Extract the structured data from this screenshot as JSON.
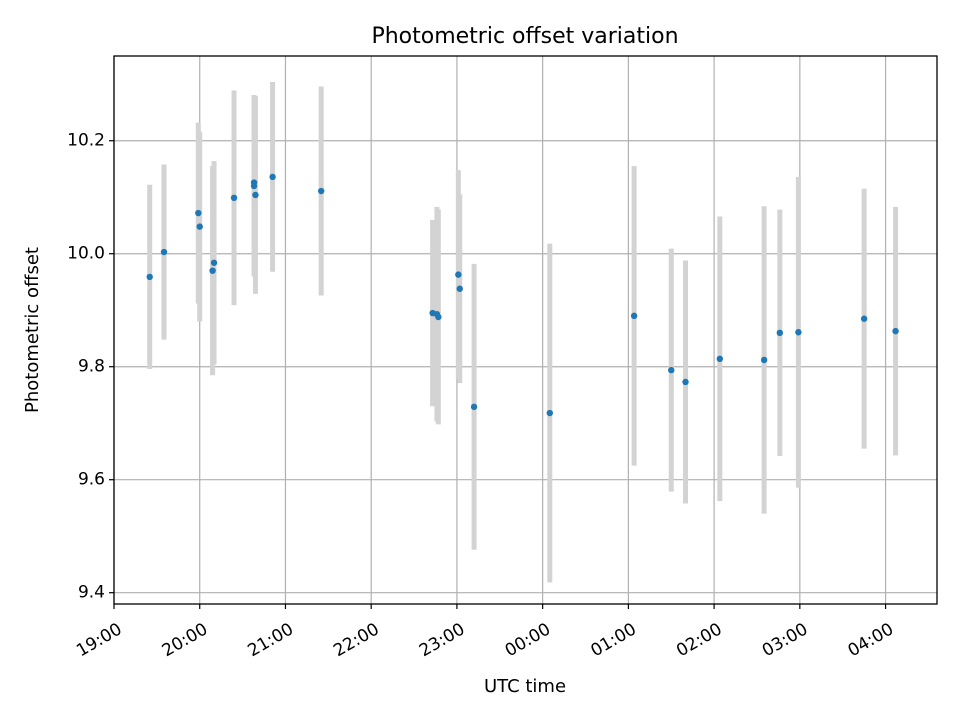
{
  "chart_data": {
    "type": "scatter",
    "title": "Photometric offset variation",
    "xlabel": "UTC time",
    "ylabel": "Photometric offset",
    "x_unit": "UTC time (HH:MM), spanning midnight",
    "x_ticks": [
      "19:00",
      "20:00",
      "21:00",
      "22:00",
      "23:00",
      "00:00",
      "01:00",
      "02:00",
      "03:00",
      "04:00"
    ],
    "y_ticks": [
      "9.4",
      "9.6",
      "9.8",
      "10.0",
      "10.2"
    ],
    "xlim": [
      "19:00",
      "04:36"
    ],
    "ylim": [
      9.38,
      10.35
    ],
    "grid": true,
    "point_color": "#1f77b4",
    "errorbar_color": "#d3d3d3",
    "points": [
      {
        "x": "19:25",
        "y": 9.959,
        "err": 0.163
      },
      {
        "x": "19:35",
        "y": 10.003,
        "err": 0.155
      },
      {
        "x": "19:59",
        "y": 10.072,
        "err": 0.16
      },
      {
        "x": "20:00",
        "y": 10.048,
        "err": 0.168
      },
      {
        "x": "20:09",
        "y": 9.97,
        "err": 0.185
      },
      {
        "x": "20:10",
        "y": 9.984,
        "err": 0.18
      },
      {
        "x": "20:24",
        "y": 10.099,
        "err": 0.19
      },
      {
        "x": "20:38",
        "y": 10.126,
        "err": 0.155
      },
      {
        "x": "20:38",
        "y": 10.12,
        "err": 0.16
      },
      {
        "x": "20:39",
        "y": 10.104,
        "err": 0.175
      },
      {
        "x": "20:51",
        "y": 10.136,
        "err": 0.168
      },
      {
        "x": "21:25",
        "y": 10.111,
        "err": 0.185
      },
      {
        "x": "22:43",
        "y": 9.895,
        "err": 0.165
      },
      {
        "x": "22:46",
        "y": 9.893,
        "err": 0.19
      },
      {
        "x": "22:47",
        "y": 9.888,
        "err": 0.19
      },
      {
        "x": "23:01",
        "y": 9.963,
        "err": 0.185
      },
      {
        "x": "23:02",
        "y": 9.938,
        "err": 0.167
      },
      {
        "x": "23:12",
        "y": 9.729,
        "err": 0.253
      },
      {
        "x": "00:05",
        "y": 9.718,
        "err": 0.3
      },
      {
        "x": "01:04",
        "y": 9.89,
        "err": 0.265
      },
      {
        "x": "01:30",
        "y": 9.794,
        "err": 0.215
      },
      {
        "x": "01:40",
        "y": 9.773,
        "err": 0.215
      },
      {
        "x": "02:04",
        "y": 9.814,
        "err": 0.252
      },
      {
        "x": "02:35",
        "y": 9.812,
        "err": 0.272
      },
      {
        "x": "02:46",
        "y": 9.86,
        "err": 0.218
      },
      {
        "x": "02:59",
        "y": 9.861,
        "err": 0.275
      },
      {
        "x": "03:45",
        "y": 9.885,
        "err": 0.23
      },
      {
        "x": "04:07",
        "y": 9.863,
        "err": 0.22
      }
    ]
  }
}
